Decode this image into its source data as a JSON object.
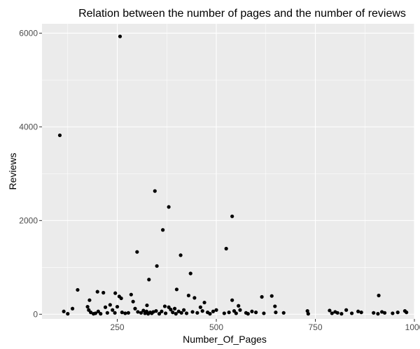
{
  "chart_data": {
    "type": "scatter",
    "title": "Relation between the number of pages and the number of reviews",
    "xlabel": "Number_Of_Pages",
    "ylabel": "Reviews",
    "xlim": [
      60,
      1000
    ],
    "ylim": [
      -100,
      6200
    ],
    "xticks": [
      250,
      500,
      750,
      1000
    ],
    "yticks": [
      0,
      2000,
      4000,
      6000
    ],
    "grid": true,
    "legend": "none",
    "colors": {
      "panel": "#ebebeb",
      "grid_major": "#ffffff",
      "point": "#000000",
      "tick_text": "#4d4d4d"
    },
    "points": [
      [
        105,
        3820
      ],
      [
        257,
        5930
      ],
      [
        345,
        2630
      ],
      [
        380,
        2290
      ],
      [
        540,
        2090
      ],
      [
        365,
        1800
      ],
      [
        525,
        1400
      ],
      [
        300,
        1330
      ],
      [
        410,
        1260
      ],
      [
        350,
        1030
      ],
      [
        330,
        740
      ],
      [
        435,
        870
      ],
      [
        150,
        520
      ],
      [
        200,
        480
      ],
      [
        215,
        460
      ],
      [
        245,
        450
      ],
      [
        255,
        380
      ],
      [
        260,
        340
      ],
      [
        400,
        530
      ],
      [
        430,
        400
      ],
      [
        445,
        350
      ],
      [
        470,
        250
      ],
      [
        540,
        300
      ],
      [
        615,
        370
      ],
      [
        640,
        390
      ],
      [
        910,
        400
      ],
      [
        180,
        300
      ],
      [
        220,
        150
      ],
      [
        232,
        200
      ],
      [
        285,
        420
      ],
      [
        290,
        270
      ],
      [
        325,
        190
      ],
      [
        370,
        170
      ],
      [
        380,
        150
      ],
      [
        395,
        120
      ],
      [
        115,
        60
      ],
      [
        125,
        10
      ],
      [
        137,
        120
      ],
      [
        175,
        160
      ],
      [
        178,
        90
      ],
      [
        183,
        40
      ],
      [
        190,
        10
      ],
      [
        195,
        20
      ],
      [
        202,
        60
      ],
      [
        208,
        10
      ],
      [
        225,
        30
      ],
      [
        238,
        90
      ],
      [
        244,
        30
      ],
      [
        250,
        160
      ],
      [
        262,
        40
      ],
      [
        270,
        20
      ],
      [
        278,
        30
      ],
      [
        295,
        120
      ],
      [
        302,
        50
      ],
      [
        310,
        30
      ],
      [
        316,
        80
      ],
      [
        320,
        20
      ],
      [
        324,
        60
      ],
      [
        328,
        10
      ],
      [
        333,
        40
      ],
      [
        337,
        20
      ],
      [
        341,
        50
      ],
      [
        348,
        70
      ],
      [
        356,
        10
      ],
      [
        362,
        60
      ],
      [
        372,
        20
      ],
      [
        385,
        100
      ],
      [
        390,
        40
      ],
      [
        398,
        10
      ],
      [
        405,
        60
      ],
      [
        412,
        30
      ],
      [
        418,
        90
      ],
      [
        425,
        20
      ],
      [
        440,
        50
      ],
      [
        452,
        30
      ],
      [
        460,
        150
      ],
      [
        465,
        70
      ],
      [
        478,
        40
      ],
      [
        484,
        10
      ],
      [
        492,
        60
      ],
      [
        500,
        90
      ],
      [
        520,
        20
      ],
      [
        532,
        40
      ],
      [
        545,
        70
      ],
      [
        550,
        20
      ],
      [
        556,
        180
      ],
      [
        560,
        90
      ],
      [
        575,
        30
      ],
      [
        580,
        10
      ],
      [
        590,
        60
      ],
      [
        600,
        40
      ],
      [
        620,
        20
      ],
      [
        648,
        170
      ],
      [
        650,
        40
      ],
      [
        670,
        30
      ],
      [
        730,
        70
      ],
      [
        732,
        10
      ],
      [
        786,
        80
      ],
      [
        792,
        20
      ],
      [
        800,
        50
      ],
      [
        806,
        30
      ],
      [
        816,
        10
      ],
      [
        828,
        90
      ],
      [
        842,
        20
      ],
      [
        858,
        60
      ],
      [
        866,
        40
      ],
      [
        897,
        30
      ],
      [
        908,
        10
      ],
      [
        918,
        50
      ],
      [
        925,
        30
      ],
      [
        945,
        20
      ],
      [
        958,
        40
      ],
      [
        976,
        70
      ],
      [
        980,
        40
      ]
    ]
  }
}
